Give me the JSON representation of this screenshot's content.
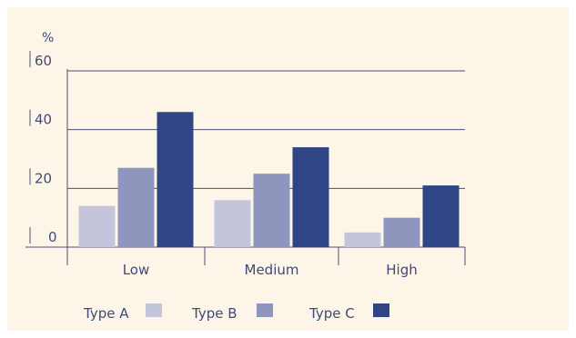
{
  "chart_data": {
    "type": "bar",
    "title": "",
    "xlabel": "",
    "ylabel": "%",
    "categories": [
      "Low",
      "Medium",
      "High"
    ],
    "yticks": [
      "0",
      "20",
      "40",
      "60"
    ],
    "ylim": [
      0,
      60
    ],
    "grid": true,
    "legend_position": "bottom-left",
    "series": [
      {
        "name": "Type A",
        "color": "#c4c5dc",
        "values": [
          14,
          16,
          5
        ]
      },
      {
        "name": "Type B",
        "color": "#8f96bd",
        "values": [
          27,
          25,
          10
        ]
      },
      {
        "name": "Type C",
        "color": "#2f4585",
        "values": [
          46,
          34,
          21
        ]
      }
    ]
  },
  "colors": {
    "background": "#fdf6e8",
    "axis": "#4a4f6e",
    "text": "#3f4a78"
  }
}
